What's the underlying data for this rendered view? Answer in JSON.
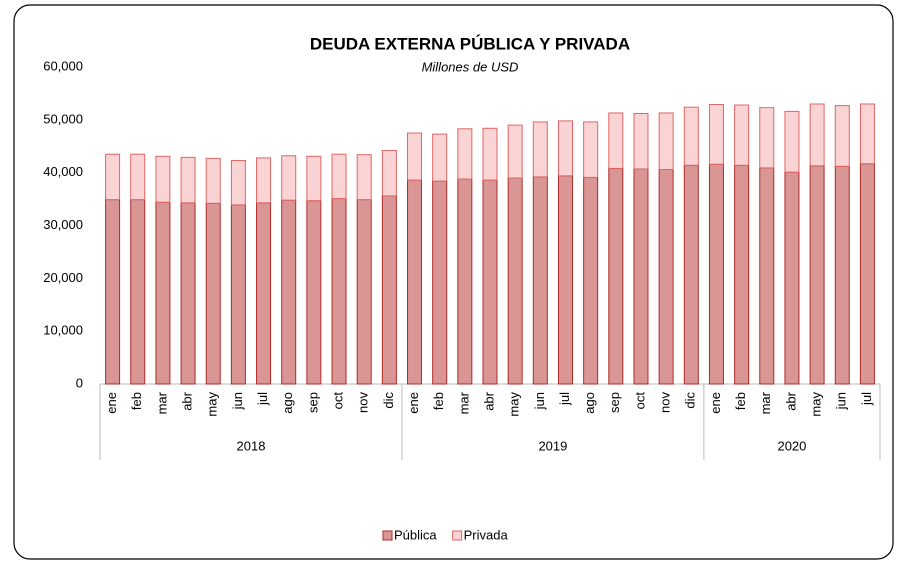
{
  "chart_data": {
    "type": "stacked-bar",
    "title": "DEUDA EXTERNA PÚBLICA Y PRIVADA",
    "subtitle": "Millones de USD",
    "groups": [
      {
        "name": "2018",
        "categories": [
          "ene",
          "feb",
          "mar",
          "abr",
          "may",
          "jun",
          "jul",
          "ago",
          "sep",
          "oct",
          "nov",
          "dic"
        ]
      },
      {
        "name": "2019",
        "categories": [
          "ene",
          "feb",
          "mar",
          "abr",
          "may",
          "jun",
          "jul",
          "ago",
          "sep",
          "oct",
          "nov",
          "dic"
        ]
      },
      {
        "name": "2020",
        "categories": [
          "ene",
          "feb",
          "mar",
          "abr",
          "may",
          "jun",
          "jul"
        ]
      }
    ],
    "series": [
      {
        "name": "Pública",
        "color": "#d99694",
        "stroke": "#b02a2a",
        "values": [
          34900,
          34900,
          34400,
          34300,
          34200,
          33900,
          34300,
          34800,
          34700,
          35100,
          34900,
          35600,
          38600,
          38400,
          38800,
          38600,
          39000,
          39200,
          39400,
          39100,
          40800,
          40700,
          40600,
          41400,
          41600,
          41400,
          40900,
          40100,
          41300,
          41200,
          41700
        ]
      },
      {
        "name": "Privada",
        "color": "#fad4d4",
        "stroke": "#e06666",
        "values": [
          8600,
          8600,
          8700,
          8600,
          8500,
          8400,
          8500,
          8400,
          8400,
          8400,
          8500,
          8600,
          8900,
          8900,
          9500,
          9800,
          10000,
          10400,
          10400,
          10500,
          10500,
          10500,
          10700,
          11000,
          11300,
          11400,
          11400,
          11500,
          11700,
          11500,
          11300
        ]
      }
    ],
    "ylim": [
      0,
      60000
    ],
    "yticks": [
      0,
      {
        "value": 10000,
        "label": "10,000"
      },
      {
        "value": 20000,
        "label": "20,000"
      },
      {
        "value": 30000,
        "label": "30,000"
      },
      {
        "value": 40000,
        "label": "40,000"
      },
      {
        "value": 50000,
        "label": "50,000"
      },
      {
        "value": 60000,
        "label": "60,000"
      }
    ],
    "legend": "bottom"
  }
}
